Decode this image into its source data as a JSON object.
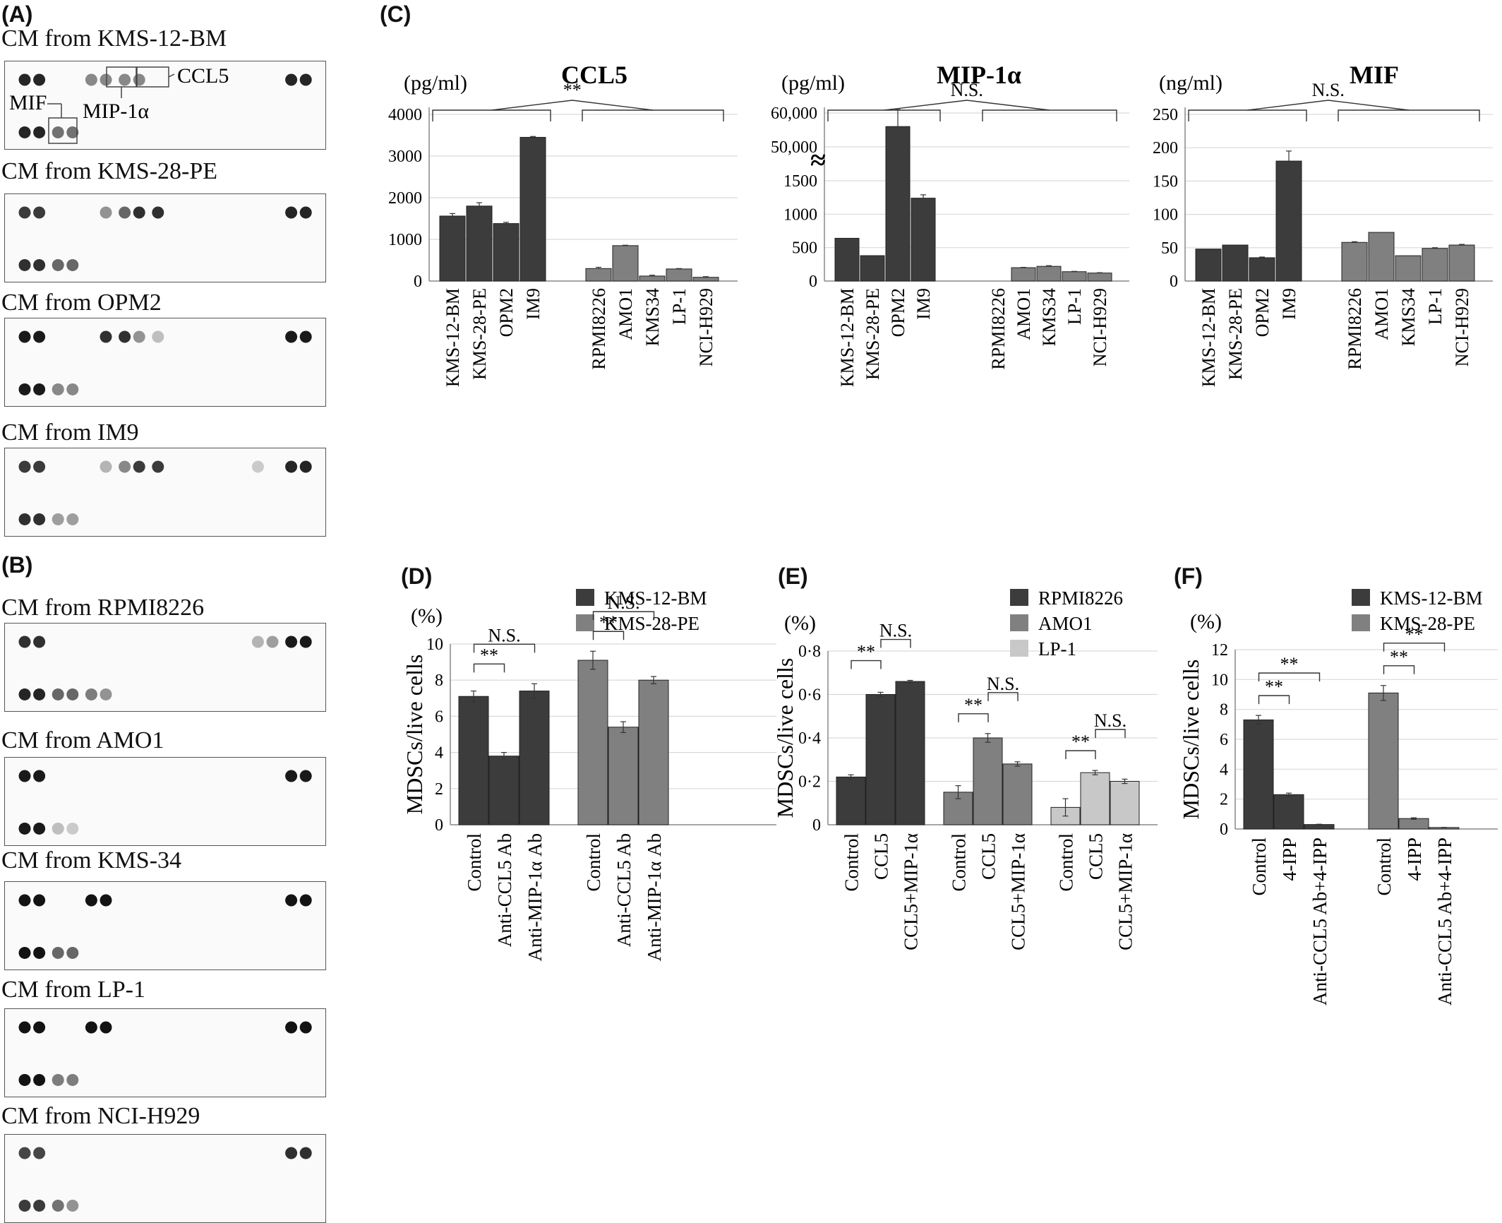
{
  "panel_labels": {
    "A": "(A)",
    "B": "(B)",
    "C": "(C)",
    "D": "(D)",
    "E": "(E)",
    "F": "(F)"
  },
  "blots": [
    {
      "title": "CM from KMS-12-BM",
      "spots": [
        [
          0,
          0,
          0.9
        ],
        [
          0,
          1,
          0.9
        ],
        [
          0,
          4,
          0.45
        ],
        [
          0,
          5,
          0.45
        ],
        [
          0,
          6,
          0.45
        ],
        [
          0,
          7,
          0.45
        ],
        [
          0,
          16,
          0.9
        ],
        [
          0,
          17,
          0.9
        ],
        [
          1,
          0,
          0.9
        ],
        [
          1,
          1,
          0.9
        ],
        [
          1,
          2,
          0.55
        ],
        [
          1,
          3,
          0.55
        ]
      ],
      "annotations": {
        "ccl5": "CCL5",
        "mif": "MIF",
        "mip": "MIP-1α"
      }
    },
    {
      "title": "CM from KMS-28-PE",
      "spots": [
        [
          0,
          0,
          0.8
        ],
        [
          0,
          1,
          0.8
        ],
        [
          0,
          5,
          0.4
        ],
        [
          0,
          6,
          0.6
        ],
        [
          0,
          7,
          0.85
        ],
        [
          0,
          8,
          0.85
        ],
        [
          0,
          16,
          0.9
        ],
        [
          0,
          17,
          0.9
        ],
        [
          1,
          0,
          0.85
        ],
        [
          1,
          1,
          0.85
        ],
        [
          1,
          2,
          0.6
        ],
        [
          1,
          3,
          0.6
        ]
      ]
    },
    {
      "title": "CM from OPM2",
      "spots": [
        [
          0,
          0,
          0.95
        ],
        [
          0,
          1,
          0.95
        ],
        [
          0,
          5,
          0.85
        ],
        [
          0,
          6,
          0.85
        ],
        [
          0,
          7,
          0.4
        ],
        [
          0,
          8,
          0.2
        ],
        [
          0,
          16,
          0.95
        ],
        [
          0,
          17,
          0.95
        ],
        [
          1,
          0,
          0.95
        ],
        [
          1,
          1,
          0.95
        ],
        [
          1,
          2,
          0.45
        ],
        [
          1,
          3,
          0.45
        ]
      ]
    },
    {
      "title": "CM from IM9",
      "spots": [
        [
          0,
          0,
          0.8
        ],
        [
          0,
          1,
          0.8
        ],
        [
          0,
          5,
          0.25
        ],
        [
          0,
          6,
          0.45
        ],
        [
          0,
          7,
          0.8
        ],
        [
          0,
          8,
          0.8
        ],
        [
          0,
          14,
          0.15
        ],
        [
          0,
          16,
          0.9
        ],
        [
          0,
          17,
          0.9
        ],
        [
          1,
          0,
          0.85
        ],
        [
          1,
          1,
          0.85
        ],
        [
          1,
          2,
          0.35
        ],
        [
          1,
          3,
          0.35
        ]
      ]
    },
    {
      "title": "CM from RPMI8226",
      "spots": [
        [
          0,
          0,
          0.85
        ],
        [
          0,
          1,
          0.85
        ],
        [
          0,
          14,
          0.25
        ],
        [
          0,
          15,
          0.35
        ],
        [
          0,
          16,
          0.95
        ],
        [
          0,
          17,
          0.95
        ],
        [
          1,
          0,
          0.9
        ],
        [
          1,
          1,
          0.9
        ],
        [
          1,
          2,
          0.6
        ],
        [
          1,
          3,
          0.6
        ],
        [
          1,
          4,
          0.5
        ],
        [
          1,
          5,
          0.4
        ]
      ]
    },
    {
      "title": "CM from AMO1",
      "spots": [
        [
          0,
          0,
          0.95
        ],
        [
          0,
          1,
          0.95
        ],
        [
          0,
          16,
          0.95
        ],
        [
          0,
          17,
          0.95
        ],
        [
          1,
          0,
          0.95
        ],
        [
          1,
          1,
          0.95
        ],
        [
          1,
          2,
          0.2
        ],
        [
          1,
          3,
          0.15
        ]
      ]
    },
    {
      "title": "CM from KMS-34",
      "spots": [
        [
          0,
          0,
          0.98
        ],
        [
          0,
          1,
          0.98
        ],
        [
          0,
          4,
          0.98
        ],
        [
          0,
          5,
          0.98
        ],
        [
          0,
          16,
          0.98
        ],
        [
          0,
          17,
          0.98
        ],
        [
          1,
          0,
          0.98
        ],
        [
          1,
          1,
          0.98
        ],
        [
          1,
          2,
          0.6
        ],
        [
          1,
          3,
          0.6
        ]
      ]
    },
    {
      "title": "CM from LP-1",
      "spots": [
        [
          0,
          0,
          0.98
        ],
        [
          0,
          1,
          0.98
        ],
        [
          0,
          4,
          0.98
        ],
        [
          0,
          5,
          0.98
        ],
        [
          0,
          16,
          0.98
        ],
        [
          0,
          17,
          0.98
        ],
        [
          1,
          0,
          0.98
        ],
        [
          1,
          1,
          0.98
        ],
        [
          1,
          2,
          0.5
        ],
        [
          1,
          3,
          0.5
        ]
      ]
    },
    {
      "title": "CM from NCI-H929",
      "spots": [
        [
          0,
          0,
          0.75
        ],
        [
          0,
          1,
          0.75
        ],
        [
          0,
          16,
          0.85
        ],
        [
          0,
          17,
          0.85
        ],
        [
          1,
          0,
          0.8
        ],
        [
          1,
          1,
          0.8
        ],
        [
          1,
          2,
          0.55
        ],
        [
          1,
          3,
          0.4
        ]
      ]
    }
  ],
  "colors": {
    "dark": "#3c3c3c",
    "mid": "#808080",
    "light": "#c8c8c8",
    "axis": "#888888",
    "grid": "#d9d9d9"
  },
  "chart_data": [
    {
      "id": "C1",
      "type": "bar",
      "title": "CCL5",
      "unit": "(pg/ml)",
      "categories": [
        "KMS-12-BM",
        "KMS-28-PE",
        "OPM2",
        "IM9",
        "RPMI8226",
        "AMO1",
        "KMS34",
        "LP-1",
        "NCI-H929"
      ],
      "values": [
        1560,
        1800,
        1380,
        3450,
        300,
        850,
        120,
        290,
        90
      ],
      "errors": [
        60,
        80,
        30,
        20,
        30,
        10,
        20,
        10,
        15
      ],
      "ylim": [
        0,
        4000
      ],
      "ticks": [
        "0",
        "1000",
        "2000",
        "3000",
        "4000"
      ],
      "significance": "**"
    },
    {
      "id": "C2",
      "type": "bar",
      "title": "MIP-1α",
      "unit": "(pg/ml)",
      "categories": [
        "KMS-12-BM",
        "KMS-28-PE",
        "OPM2",
        "IM9",
        "RPMI8226",
        "AMO1",
        "KMS34",
        "LP-1",
        "NCI-H929"
      ],
      "values": [
        640,
        380,
        56000,
        1240,
        0,
        200,
        220,
        140,
        120
      ],
      "errors": [
        0,
        0,
        5000,
        50,
        0,
        5,
        10,
        5,
        5
      ],
      "axis_break": true,
      "ticks": [
        "0",
        "500",
        "1000",
        "1500",
        "50,000",
        "60,000"
      ],
      "significance": "N.S."
    },
    {
      "id": "C3",
      "type": "bar",
      "title": "MIF",
      "unit": "(ng/ml)",
      "categories": [
        "KMS-12-BM",
        "KMS-28-PE",
        "OPM2",
        "IM9",
        "RPMI8226",
        "AMO1",
        "KMS34",
        "LP-1",
        "NCI-H929"
      ],
      "values": [
        48,
        54,
        35,
        180,
        58,
        73,
        38,
        49,
        54
      ],
      "errors": [
        0,
        0,
        1,
        15,
        1,
        0,
        0,
        1,
        1
      ],
      "ylim": [
        0,
        250
      ],
      "ticks": [
        "0",
        "50",
        "100",
        "150",
        "200",
        "250"
      ],
      "significance": "N.S."
    },
    {
      "id": "D",
      "type": "bar",
      "ylabel": "MDSCs/live cells",
      "unit": "(%)",
      "categories": [
        "Control",
        "Anti-CCL5 Ab",
        "Anti-MIP-1α Ab"
      ],
      "series": [
        {
          "name": "KMS-12-BM",
          "values": [
            7.1,
            3.8,
            7.4
          ],
          "errors": [
            0.3,
            0.2,
            0.4
          ]
        },
        {
          "name": "KMS-28-PE",
          "values": [
            9.1,
            5.4,
            8.0
          ],
          "errors": [
            0.5,
            0.3,
            0.2
          ]
        }
      ],
      "ylim": [
        0,
        10
      ],
      "ticks": [
        "0",
        "2",
        "4",
        "6",
        "8",
        "10"
      ],
      "brackets": [
        {
          "group": 0,
          "from": 0,
          "to": 1,
          "label": "**",
          "level": 1
        },
        {
          "group": 0,
          "from": 0,
          "to": 2,
          "label": "N.S.",
          "level": 2
        },
        {
          "group": 1,
          "from": 0,
          "to": 1,
          "label": "**",
          "level": 1
        },
        {
          "group": 1,
          "from": 0,
          "to": 2,
          "label": "N.S.",
          "level": 2
        }
      ]
    },
    {
      "id": "E",
      "type": "bar",
      "ylabel": "MDSCs/live cells",
      "unit": "(%)",
      "categories": [
        "Control",
        "CCL5",
        "CCL5+MIP-1α"
      ],
      "series": [
        {
          "name": "RPMI8226",
          "values": [
            0.22,
            0.6,
            0.66
          ],
          "errors": [
            0.01,
            0.01,
            0.005
          ]
        },
        {
          "name": "AMO1",
          "values": [
            0.15,
            0.4,
            0.28
          ],
          "errors": [
            0.03,
            0.02,
            0.01
          ]
        },
        {
          "name": "LP-1",
          "values": [
            0.08,
            0.24,
            0.2
          ],
          "errors": [
            0.04,
            0.01,
            0.01
          ]
        }
      ],
      "ylim": [
        0,
        0.8
      ],
      "ticks": [
        "0",
        "0·2",
        "0·4",
        "0·6",
        "0·8"
      ],
      "brackets": [
        {
          "group": 0,
          "from": 0,
          "to": 1,
          "label": "**",
          "level": 1
        },
        {
          "group": 0,
          "from": 1,
          "to": 2,
          "label": "N.S.",
          "level": 2
        },
        {
          "group": 1,
          "from": 0,
          "to": 1,
          "label": "**",
          "level": 1
        },
        {
          "group": 1,
          "from": 1,
          "to": 2,
          "label": "N.S.",
          "level": 2
        },
        {
          "group": 2,
          "from": 0,
          "to": 1,
          "label": "**",
          "level": 1
        },
        {
          "group": 2,
          "from": 1,
          "to": 2,
          "label": "N.S.",
          "level": 2
        }
      ]
    },
    {
      "id": "F",
      "type": "bar",
      "ylabel": "MDSCs/live cells",
      "unit": "(%)",
      "categories": [
        "Control",
        "4-IPP",
        "Anti-CCL5 Ab+4-IPP"
      ],
      "series": [
        {
          "name": "KMS-12-BM",
          "values": [
            7.3,
            2.3,
            0.3
          ],
          "errors": [
            0.3,
            0.1,
            0.02
          ]
        },
        {
          "name": "KMS-28-PE",
          "values": [
            9.1,
            0.7,
            0.1
          ],
          "errors": [
            0.5,
            0.05,
            0.01
          ]
        }
      ],
      "ylim": [
        0,
        12
      ],
      "ticks": [
        "0",
        "2",
        "4",
        "6",
        "8",
        "10",
        "12"
      ],
      "brackets": [
        {
          "group": 0,
          "from": 0,
          "to": 1,
          "label": "**",
          "level": 1
        },
        {
          "group": 0,
          "from": 0,
          "to": 2,
          "label": "**",
          "level": 2
        },
        {
          "group": 1,
          "from": 0,
          "to": 1,
          "label": "**",
          "level": 1
        },
        {
          "group": 1,
          "from": 0,
          "to": 2,
          "label": "**",
          "level": 2
        }
      ]
    }
  ]
}
